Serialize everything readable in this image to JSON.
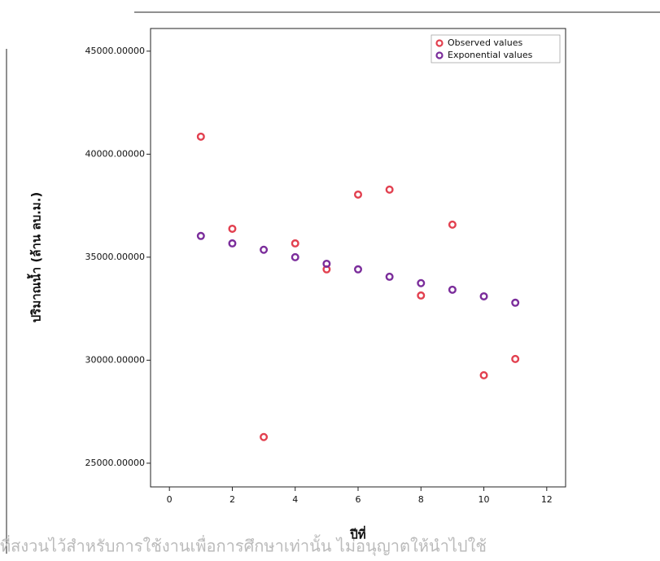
{
  "chart_data": {
    "type": "scatter",
    "xlabel": "ปีที่",
    "ylabel": "ปริมาณน้ำ (ล้าน ลบ.ม.)",
    "footer": "ที่สงวนไว้สำหรับการใช้งานเพื่อการศึกษาเท่านั้น ไม่อนุญาตให้นำไปใช้",
    "legend": "top-right",
    "xlim": [
      -0.6,
      12.6
    ],
    "ylim": [
      23850,
      46100
    ],
    "xticks": [
      0,
      2,
      4,
      6,
      8,
      10,
      12
    ],
    "yticks": [
      {
        "value": 25000,
        "label": "25000.00000"
      },
      {
        "value": 30000,
        "label": "30000.00000"
      },
      {
        "value": 35000,
        "label": "35000.00000"
      },
      {
        "value": 40000,
        "label": "40000.00000"
      },
      {
        "value": 45000,
        "label": "45000.00000"
      }
    ],
    "x": [
      1,
      2,
      3,
      4,
      5,
      6,
      7,
      8,
      9,
      10,
      11
    ],
    "series": [
      {
        "name": "Observed values",
        "color": "#e2404f",
        "values": [
          40850,
          36380,
          26270,
          35670,
          34410,
          38040,
          38280,
          33140,
          36580,
          29270,
          30060
        ]
      },
      {
        "name": "Exponential values",
        "color": "#7b2d9b",
        "values": [
          36030,
          35670,
          35360,
          35000,
          34680,
          34410,
          34050,
          33740,
          33420,
          33100,
          32790
        ]
      }
    ]
  }
}
